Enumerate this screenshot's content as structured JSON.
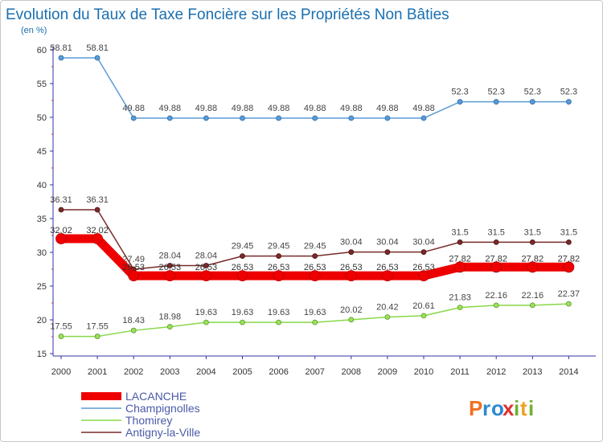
{
  "chart_data": {
    "type": "line",
    "title": "Evolution du Taux de Taxe Foncière sur les Propriétés Non Bâties",
    "ylabel": "(en %)",
    "xlabel": "",
    "ylim": [
      15,
      60
    ],
    "yticks": [
      15,
      20,
      25,
      30,
      35,
      40,
      45,
      50,
      55,
      60
    ],
    "categories": [
      "2000",
      "2001",
      "2002",
      "2003",
      "2004",
      "2005",
      "2006",
      "2007",
      "2008",
      "2009",
      "2010",
      "2011",
      "2012",
      "2013",
      "2014"
    ],
    "series": [
      {
        "name": "LACANCHE",
        "color": "#ee0000",
        "values": [
          32.02,
          32.02,
          26.53,
          26.53,
          26.53,
          26.53,
          26.53,
          26.53,
          26.53,
          26.53,
          26.53,
          27.82,
          27.82,
          27.82,
          27.82
        ],
        "labels": [
          "32.02",
          "32.02",
          "26.53",
          "26.53",
          "26.53",
          "26.53",
          "26.53",
          "26.53",
          "26.53",
          "26.53",
          "26.53",
          "27.82",
          "27.82",
          "27.82",
          "27.82"
        ]
      },
      {
        "name": "Champignolles",
        "color": "#5b9bd5",
        "values": [
          58.81,
          58.81,
          49.88,
          49.88,
          49.88,
          49.88,
          49.88,
          49.88,
          49.88,
          49.88,
          49.88,
          52.3,
          52.3,
          52.3,
          52.3
        ],
        "labels": [
          "58.81",
          "58.81",
          "49.88",
          "49.88",
          "49.88",
          "49.88",
          "49.88",
          "49.88",
          "49.88",
          "49.88",
          "49.88",
          "52.3",
          "52.3",
          "52.3",
          "52.3"
        ]
      },
      {
        "name": "Thomirey",
        "color": "#88d848",
        "values": [
          17.55,
          17.55,
          18.43,
          18.98,
          19.63,
          19.63,
          19.63,
          19.63,
          20.02,
          20.42,
          20.61,
          21.83,
          22.16,
          22.16,
          22.37
        ],
        "labels": [
          "17.55",
          "17.55",
          "18.43",
          "18.98",
          "19.63",
          "19.63",
          "19.63",
          "19.63",
          "20.02",
          "20.42",
          "20.61",
          "21.83",
          "22.16",
          "22.16",
          "22.37"
        ]
      },
      {
        "name": "Antigny-la-Ville",
        "color": "#7a2a2a",
        "values": [
          36.31,
          36.31,
          27.49,
          28.04,
          28.04,
          29.45,
          29.45,
          29.45,
          30.04,
          30.04,
          30.04,
          31.5,
          31.5,
          31.5,
          31.5
        ],
        "labels": [
          "36.31",
          "36.31",
          "27.49",
          "28.04",
          "28.04",
          "29.45",
          "29.45",
          "29.45",
          "30.04",
          "30.04",
          "30.04",
          "31.5",
          "31.5",
          "31.5",
          "31.5"
        ]
      }
    ]
  },
  "logo": {
    "text": "Proxiti",
    "letters": [
      "P",
      "r",
      "o",
      "x",
      "i",
      "t",
      "i"
    ]
  }
}
